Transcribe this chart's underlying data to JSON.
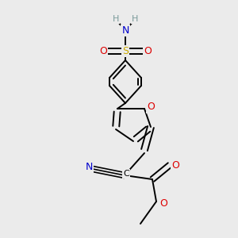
{
  "background_color": "#ebebeb",
  "atom_colors": {
    "C": "#000000",
    "N": "#0000cc",
    "O": "#dd0000",
    "S": "#ccaa00",
    "H": "#7a9a9a"
  },
  "bond_lw": 1.4,
  "figsize": [
    3.0,
    3.0
  ],
  "dpi": 100
}
